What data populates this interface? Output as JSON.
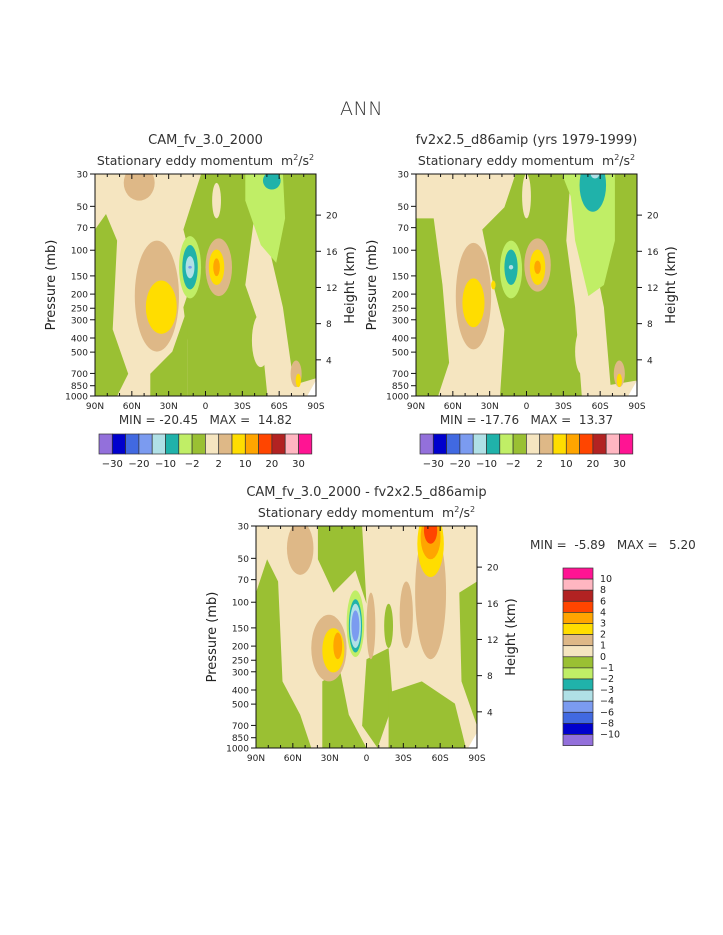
{
  "main_title": "ANN",
  "panels": [
    {
      "title": "CAM_fv_3.0_2000",
      "subtitle_text": "Stationary eddy momentum",
      "subtitle_unit": "m",
      "subtitle_unit_exp": "2",
      "subtitle_unit_mid": "/s",
      "subtitle_unit_exp2": "2",
      "min_label": "MIN =",
      "min_value": "-20.45",
      "max_label": "MAX =",
      "max_value": "14.82"
    },
    {
      "title": "fv2x2.5_d86amip (yrs 1979-1999)",
      "subtitle_text": "Stationary eddy momentum",
      "subtitle_unit": "m",
      "subtitle_unit_exp": "2",
      "subtitle_unit_mid": "/s",
      "subtitle_unit_exp2": "2",
      "min_label": "MIN =",
      "min_value": "-17.76",
      "max_label": "MAX =",
      "max_value": "13.37"
    },
    {
      "title": "CAM_fv_3.0_2000 - fv2x2.5_d86amip",
      "subtitle_text": "Stationary eddy momentum",
      "subtitle_unit": "m",
      "subtitle_unit_exp": "2",
      "subtitle_unit_mid": "/s",
      "subtitle_unit_exp2": "2",
      "min_label": "MIN =",
      "min_value": "-5.89",
      "max_label": "MAX =",
      "max_value": "5.20"
    }
  ],
  "chart_data": [
    {
      "type": "heatmap",
      "title": "CAM_fv_3.0_2000",
      "subtitle": "Stationary eddy momentum m2/s2",
      "xlabel": "",
      "ylabel": "Pressure (mb)",
      "ylabel_right": "Height (km)",
      "x_ticks": [
        "90N",
        "60N",
        "30N",
        "0",
        "30S",
        "60S",
        "90S"
      ],
      "y_ticks": [
        "30",
        "50",
        "70",
        "100",
        "150",
        "200",
        "250",
        "300",
        "400",
        "500",
        "700",
        "850",
        "1000"
      ],
      "y_right_ticks": [
        "20",
        "16",
        "12",
        "8",
        "4"
      ],
      "ylim": [
        1000,
        30
      ],
      "min": -20.45,
      "max": 14.82,
      "colorbar_labels": [
        "-30",
        "-20",
        "-10",
        "-2",
        "2",
        "10",
        "20",
        "30"
      ],
      "colorbar_orientation": "horizontal"
    },
    {
      "type": "heatmap",
      "title": "fv2x2.5_d86amip (yrs 1979-1999)",
      "subtitle": "Stationary eddy momentum m2/s2",
      "xlabel": "",
      "ylabel": "Pressure (mb)",
      "ylabel_right": "Height (km)",
      "x_ticks": [
        "90N",
        "60N",
        "30N",
        "0",
        "30S",
        "60S",
        "90S"
      ],
      "y_ticks": [
        "30",
        "50",
        "70",
        "100",
        "150",
        "200",
        "250",
        "300",
        "400",
        "500",
        "700",
        "850",
        "1000"
      ],
      "y_right_ticks": [
        "20",
        "16",
        "12",
        "8",
        "4"
      ],
      "ylim": [
        1000,
        30
      ],
      "min": -17.76,
      "max": 13.37,
      "colorbar_labels": [
        "-30",
        "-20",
        "-10",
        "-2",
        "2",
        "10",
        "20",
        "30"
      ],
      "colorbar_orientation": "horizontal"
    },
    {
      "type": "heatmap",
      "title": "CAM_fv_3.0_2000 - fv2x2.5_d86amip",
      "subtitle": "Stationary eddy momentum m2/s2",
      "xlabel": "",
      "ylabel": "Pressure (mb)",
      "ylabel_right": "Height (km)",
      "x_ticks": [
        "90N",
        "60N",
        "30N",
        "0",
        "30S",
        "60S",
        "90S"
      ],
      "y_ticks": [
        "30",
        "50",
        "70",
        "100",
        "150",
        "200",
        "250",
        "300",
        "400",
        "500",
        "700",
        "850",
        "1000"
      ],
      "y_right_ticks": [
        "20",
        "16",
        "12",
        "8",
        "4"
      ],
      "ylim": [
        1000,
        30
      ],
      "min": -5.89,
      "max": 5.2,
      "colorbar_labels": [
        "10",
        "8",
        "6",
        "4",
        "3",
        "2",
        "1",
        "0",
        "-1",
        "-2",
        "-3",
        "-4",
        "-6",
        "-8",
        "-10"
      ],
      "colorbar_orientation": "vertical"
    }
  ],
  "colors": {
    "palette": [
      "#9370db",
      "#0000cd",
      "#4169e1",
      "#7b9bf0",
      "#b0e0e6",
      "#20b2aa",
      "#c0ee66",
      "#9ac033",
      "#f5e5c0",
      "#deb887",
      "#ffdd00",
      "#ffa500",
      "#ff4500",
      "#b22222",
      "#ffb6c1",
      "#ff1493"
    ]
  }
}
